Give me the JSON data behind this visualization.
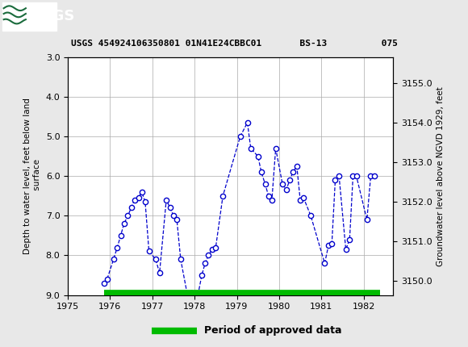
{
  "title": "USGS 454924106350801 01N41E24CBBC01       BS-13          075",
  "ylabel_left": "Depth to water level, feet below land\n surface",
  "ylabel_right": "Groundwater level above NGVD 1929, feet",
  "ylim_left": [
    3.0,
    9.0
  ],
  "xlim": [
    1975.0,
    1982.7
  ],
  "xticks": [
    1975,
    1976,
    1977,
    1978,
    1979,
    1980,
    1981,
    1982
  ],
  "yticks_left": [
    3.0,
    4.0,
    5.0,
    6.0,
    7.0,
    8.0,
    9.0
  ],
  "yticks_right": [
    3150.0,
    3151.0,
    3152.0,
    3153.0,
    3154.0,
    3155.0
  ],
  "header_color": "#1a6b3c",
  "line_color": "#0000cc",
  "marker_facecolor": "white",
  "marker_edgecolor": "#0000cc",
  "green_bar_color": "#00bb00",
  "fig_bg_color": "#e8e8e8",
  "plot_bg_color": "white",
  "land_surface_elevation": 3158.65,
  "data_x": [
    1975.85,
    1975.93,
    1976.08,
    1976.17,
    1976.25,
    1976.33,
    1976.42,
    1976.5,
    1976.58,
    1976.67,
    1976.75,
    1976.83,
    1976.92,
    1977.08,
    1977.17,
    1977.33,
    1977.42,
    1977.5,
    1977.58,
    1977.67,
    1977.83,
    1977.92,
    1978.08,
    1978.17,
    1978.25,
    1978.33,
    1978.42,
    1978.5,
    1978.67,
    1979.08,
    1979.25,
    1979.33,
    1979.5,
    1979.58,
    1979.67,
    1979.75,
    1979.83,
    1979.92,
    1980.08,
    1980.17,
    1980.25,
    1980.33,
    1980.42,
    1980.5,
    1980.58,
    1980.75,
    1981.08,
    1981.17,
    1981.25,
    1981.33,
    1981.42,
    1981.58,
    1981.67,
    1981.75,
    1981.83,
    1982.08,
    1982.17,
    1982.25
  ],
  "data_y": [
    8.7,
    8.6,
    8.1,
    7.8,
    7.5,
    7.2,
    7.0,
    6.8,
    6.6,
    6.55,
    6.4,
    6.65,
    7.9,
    8.1,
    8.45,
    6.6,
    6.8,
    7.0,
    7.1,
    8.1,
    9.0,
    8.95,
    9.0,
    8.5,
    8.2,
    8.0,
    7.85,
    7.8,
    6.5,
    5.0,
    4.65,
    5.3,
    5.5,
    5.9,
    6.2,
    6.5,
    6.6,
    5.3,
    6.2,
    6.35,
    6.1,
    5.9,
    5.75,
    6.6,
    6.55,
    7.0,
    8.2,
    7.75,
    7.7,
    6.1,
    6.0,
    7.85,
    7.6,
    6.0,
    6.0,
    7.1,
    6.0,
    6.0
  ],
  "green_bar_xmin": 1975.85,
  "green_bar_xmax": 1982.4,
  "legend_label": "Period of approved data"
}
